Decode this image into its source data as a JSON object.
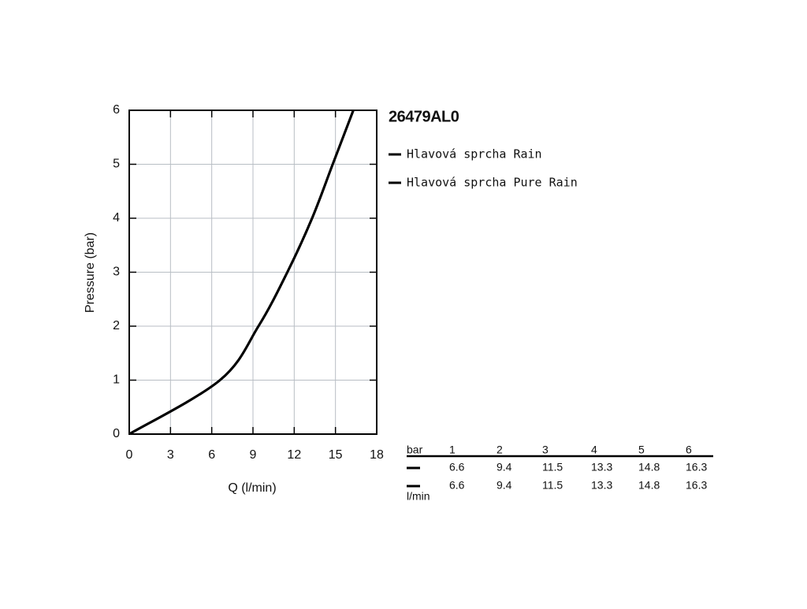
{
  "chart_data": {
    "type": "line",
    "title": "26479AL0",
    "x_label": "Q (l/min)",
    "y_label": "Pressure (bar)",
    "series": [
      {
        "name": "Hlavová sprcha Rain",
        "color": "#000000",
        "x": [
          0,
          6.6,
          9.4,
          11.5,
          13.3,
          14.8,
          16.3
        ],
        "values": [
          0,
          1,
          2,
          3,
          4,
          5,
          6
        ]
      },
      {
        "name": "Hlavová sprcha Pure Rain",
        "color": "#000000",
        "x": [
          0,
          6.6,
          9.4,
          11.5,
          13.3,
          14.8,
          16.3
        ],
        "values": [
          0,
          1,
          2,
          3,
          4,
          5,
          6
        ]
      }
    ],
    "xlim": [
      0,
      18
    ],
    "xticks": [
      0,
      3,
      6,
      9,
      12,
      15,
      18
    ],
    "ylim": [
      0,
      6
    ],
    "yticks": [
      0,
      1,
      2,
      3,
      4,
      5,
      6
    ],
    "grid": true
  },
  "table": {
    "header": [
      "bar",
      "1",
      "2",
      "3",
      "4",
      "5",
      "6"
    ],
    "rows": [
      [
        "6.6",
        "9.4",
        "11.5",
        "13.3",
        "14.8",
        "16.3"
      ],
      [
        "6.6",
        "9.4",
        "11.5",
        "13.3",
        "14.8",
        "16.3"
      ]
    ],
    "unit": "l/min"
  }
}
